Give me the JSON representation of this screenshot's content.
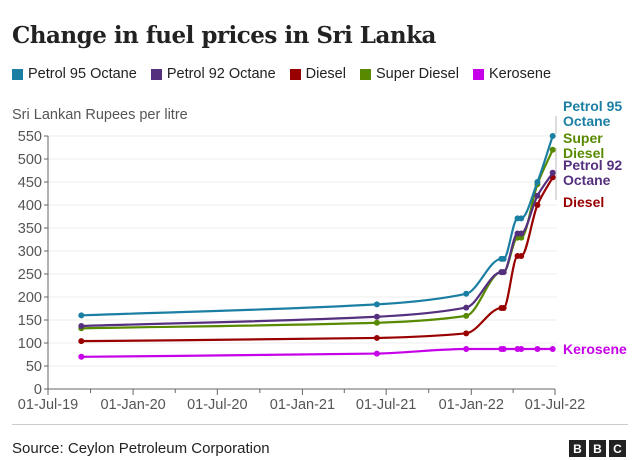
{
  "chart_data": {
    "type": "line",
    "title": "Change in fuel prices in Sri Lanka",
    "ylabel": "Sri Lankan Rupees per litre",
    "ylim": [
      0,
      550
    ],
    "yticks": [
      0,
      50,
      100,
      150,
      200,
      250,
      300,
      350,
      400,
      450,
      500,
      550
    ],
    "xlim": [
      "2019-07-01",
      "2022-07-01"
    ],
    "xticks": [
      "2019-07-01",
      "2020-01-01",
      "2020-07-01",
      "2021-01-01",
      "2021-07-01",
      "2022-01-01",
      "2022-07-01"
    ],
    "xtick_labels": [
      "01-Jul-19",
      "01-Jan-20",
      "01-Jul-20",
      "01-Jan-21",
      "01-Jul-21",
      "01-Jan-22",
      "01-Jul-22"
    ],
    "grid": "horizontal",
    "legend": "top",
    "x": [
      "2019-09-11",
      "2021-06-11",
      "2021-12-21",
      "2022-03-07",
      "2022-03-12",
      "2022-04-11",
      "2022-04-19",
      "2022-05-24",
      "2022-06-26"
    ],
    "series": [
      {
        "name": "Petrol 95 Octane",
        "end_label": [
          "Petrol 95",
          "Octane"
        ],
        "color": "#1b7fa3",
        "values": [
          160,
          184,
          207,
          283,
          283,
          371,
          371,
          450,
          550
        ]
      },
      {
        "name": "Petrol 92 Octane",
        "end_label": [
          "Petrol 92",
          "Octane"
        ],
        "color": "#55307f",
        "values": [
          137,
          157,
          177,
          254,
          254,
          338,
          338,
          420,
          470
        ]
      },
      {
        "name": "Diesel",
        "end_label": [
          "Diesel"
        ],
        "color": "#990000",
        "values": [
          104,
          111,
          121,
          176,
          176,
          289,
          289,
          400,
          460
        ]
      },
      {
        "name": "Super Diesel",
        "end_label": [
          "Super",
          "Diesel"
        ],
        "color": "#588a00",
        "values": [
          132,
          144,
          159,
          254,
          254,
          329,
          329,
          445,
          520
        ]
      },
      {
        "name": "Kerosene",
        "end_label": [
          "Kerosene"
        ],
        "color": "#c600e8",
        "values": [
          70,
          77,
          87,
          87,
          87,
          87,
          87,
          87,
          87
        ]
      }
    ]
  },
  "source": "Source: Ceylon Petroleum Corporation",
  "logo": "BBC"
}
